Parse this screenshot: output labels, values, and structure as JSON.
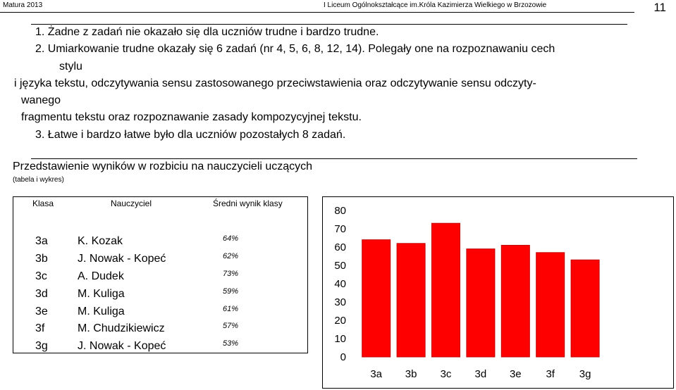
{
  "header": {
    "left": "Matura 2013",
    "right": "I Liceum Ogólnokształcące im.Króla Kazimierza Wielkiego w Brzozowie",
    "page_number": "11"
  },
  "list": {
    "lines": [
      "1.  Żadne z zadań nie okazało się dla uczniów trudne i bardzo trudne.",
      "2.  Umiarkowanie trudne okazały się 6 zadań (nr 4, 5, 6, 8, 12, 14). Polegały one na rozpoznawaniu cech",
      "stylu",
      "i języka tekstu, odczytywania sensu zastosowanego przeciwstawienia oraz odczytywanie sensu odczyty-",
      "wanego",
      "fragmentu tekstu oraz rozpoznawanie zasady kompozycyjnej tekstu.",
      "3. Łatwe i bardzo łatwe było dla uczniów pozostałych 8 zadań."
    ]
  },
  "section": {
    "title": "Przedstawienie wyników w rozbiciu na nauczycieli uczących",
    "subtitle": "(tabela i wykres)"
  },
  "table": {
    "headers": [
      "Klasa",
      "Nauczyciel",
      "Średni wynik klasy"
    ],
    "rows": [
      {
        "klasa": "3a",
        "nauczyciel": "K. Kozak",
        "wynik": "64%"
      },
      {
        "klasa": "3b",
        "nauczyciel": "J. Nowak - Kopeć",
        "wynik": "62%"
      },
      {
        "klasa": "3c",
        "nauczyciel": "A. Dudek",
        "wynik": "73%"
      },
      {
        "klasa": "3d",
        "nauczyciel": "M. Kuliga",
        "wynik": "59%"
      },
      {
        "klasa": "3e",
        "nauczyciel": "M. Kuliga",
        "wynik": "61%"
      },
      {
        "klasa": "3f",
        "nauczyciel": "M. Chudzikiewicz",
        "wynik": "57%"
      },
      {
        "klasa": "3g",
        "nauczyciel": "J. Nowak - Kopeć",
        "wynik": "53%"
      }
    ]
  },
  "chart_data": {
    "type": "bar",
    "categories": [
      "3a",
      "3b",
      "3c",
      "3d",
      "3e",
      "3f",
      "3g"
    ],
    "values": [
      64,
      62,
      73,
      59,
      61,
      57,
      53
    ],
    "ylim": [
      0,
      80
    ],
    "yticks": [
      0,
      10,
      20,
      30,
      40,
      50,
      60,
      70,
      80
    ],
    "grid": false,
    "bar_color": "#ff0000",
    "bar_edge_color": "#c00000"
  }
}
